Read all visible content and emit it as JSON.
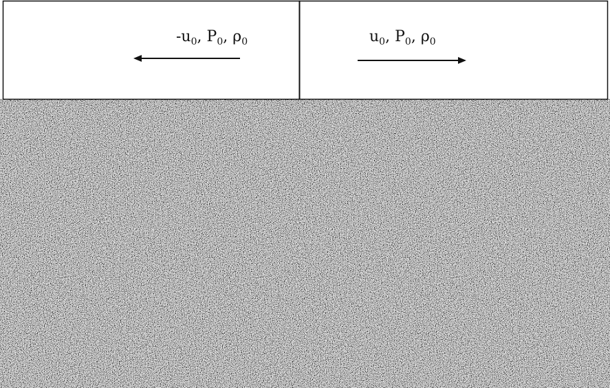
{
  "diagram": {
    "left_state": {
      "velocity": "-u",
      "velocity_sub": "0",
      "pressure": "P",
      "pressure_sub": "0",
      "density": "ρ",
      "density_sub": "0",
      "separator": ", "
    },
    "right_state": {
      "velocity": "u",
      "velocity_sub": "0",
      "pressure": "P",
      "pressure_sub": "0",
      "density": "ρ",
      "density_sub": "0",
      "separator": ", "
    },
    "colors": {
      "line": "#111111",
      "box_fill": "#ffffff",
      "noise_base": "#7a7a7a"
    },
    "arrows": {
      "left": "left-pointing arrow",
      "right": "right-pointing arrow"
    }
  }
}
